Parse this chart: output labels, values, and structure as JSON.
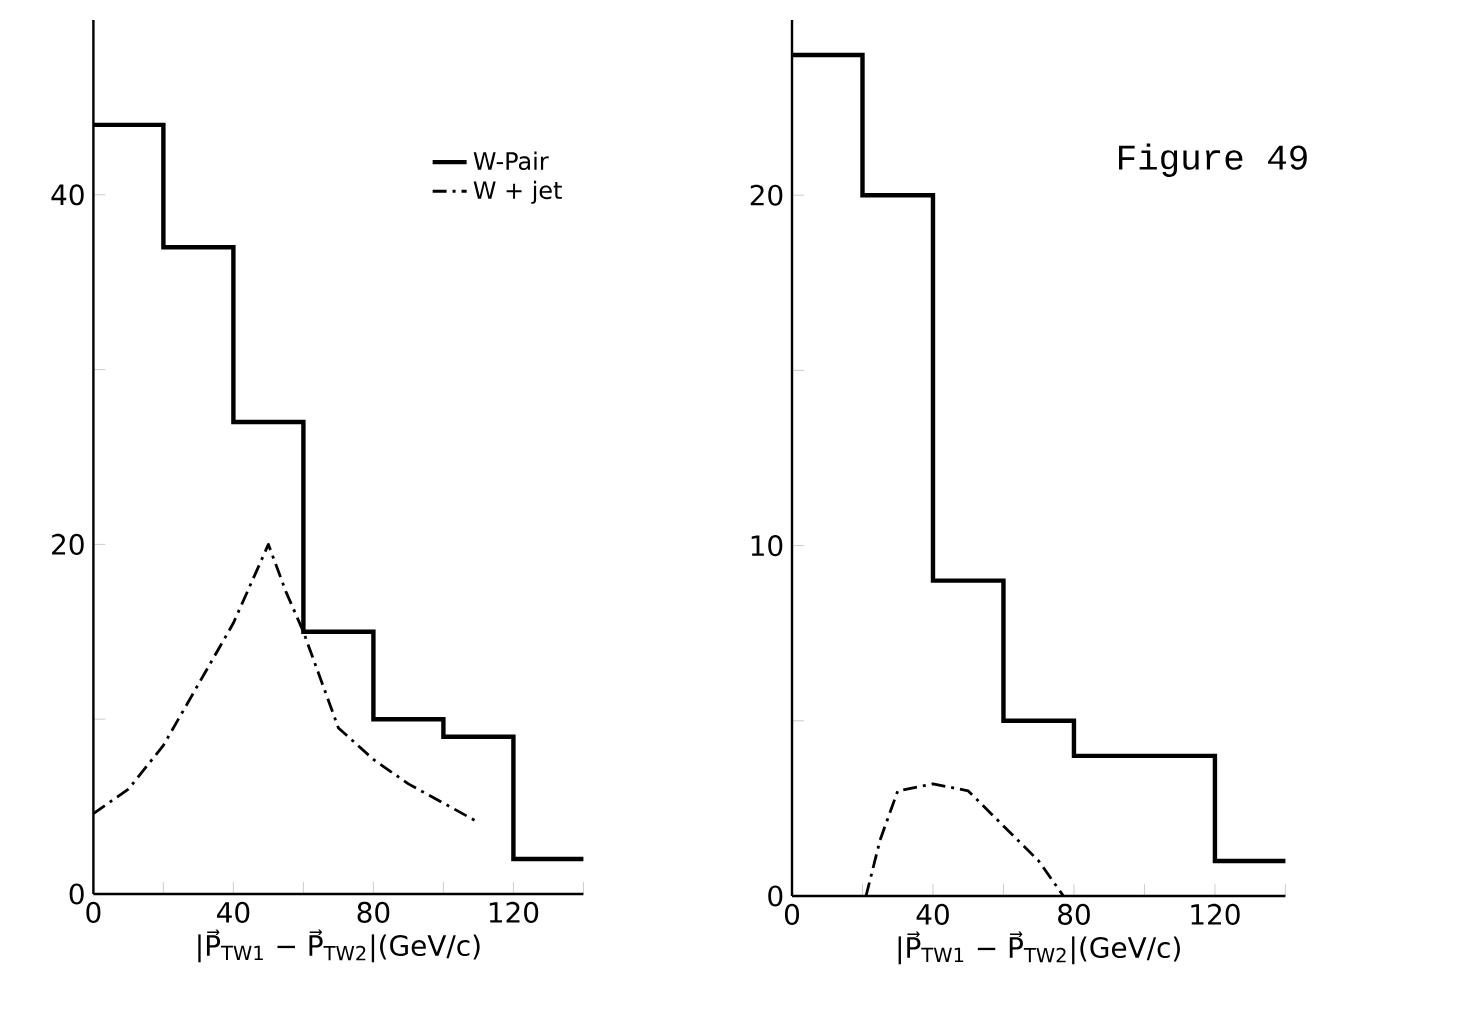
{
  "chart_data": [
    {
      "type": "histogram",
      "xlabel": "|P⃗$_{TW1}$ − P⃗$_{TW2}$|(GeV/c)",
      "xlim": [
        0,
        140
      ],
      "xticks": [
        0,
        {
          "value": 20,
          "label": null
        },
        40,
        {
          "value": 60,
          "label": null
        },
        80,
        {
          "value": 100,
          "label": null
        },
        120,
        {
          "value": 140,
          "label": null
        }
      ],
      "ylim": [
        0,
        50
      ],
      "yticks": [
        0,
        {
          "value": 10,
          "label": null
        },
        20,
        {
          "value": 30,
          "label": null
        },
        40
      ],
      "legend": "top right",
      "series": [
        {
          "name": "W-Pair",
          "color": "#000000",
          "line_style": "solid",
          "bins": [
            0,
            20,
            40,
            60,
            80,
            100,
            120,
            140
          ],
          "values": [
            44,
            37,
            27,
            15,
            10,
            9,
            2
          ]
        },
        {
          "name": "W + jet",
          "type": "line",
          "color": "#000000",
          "line_style": "dashed",
          "x": [
            0,
            10,
            20,
            30,
            40,
            50,
            55,
            60,
            70,
            80,
            90,
            100,
            110
          ],
          "values": [
            4.6,
            6,
            8.5,
            12,
            15.5,
            20,
            17.3,
            15,
            9.5,
            7.7,
            6.3,
            5.2,
            4.1
          ]
        }
      ]
    },
    {
      "type": "histogram",
      "xlabel": "|P⃗$_{TW1}$ − P⃗$_{TW2}$|(GeV/c)",
      "xlim": [
        0,
        140
      ],
      "xticks": [
        0,
        {
          "value": 20,
          "label": null
        },
        40,
        {
          "value": 60,
          "label": null
        },
        80,
        {
          "value": 100,
          "label": null
        },
        120,
        {
          "value": 140,
          "label": null
        }
      ],
      "ylim": [
        0,
        25
      ],
      "yticks": [
        0,
        {
          "value": 5,
          "label": null
        },
        10,
        {
          "value": 15,
          "label": null
        },
        20
      ],
      "annotations": [
        "Figure 49"
      ],
      "series": [
        {
          "color": "#000000",
          "line_style": "solid",
          "bins": [
            0,
            20,
            40,
            60,
            80,
            100,
            120,
            140
          ],
          "values": [
            24,
            20,
            9,
            5,
            4,
            4,
            1
          ]
        },
        {
          "type": "line",
          "color": "#000000",
          "line_style": "dashed",
          "x": [
            21,
            25,
            30,
            40,
            50,
            60,
            70,
            77
          ],
          "values": [
            0,
            1.6,
            3,
            3.2,
            3,
            2,
            1,
            0
          ]
        }
      ]
    }
  ]
}
